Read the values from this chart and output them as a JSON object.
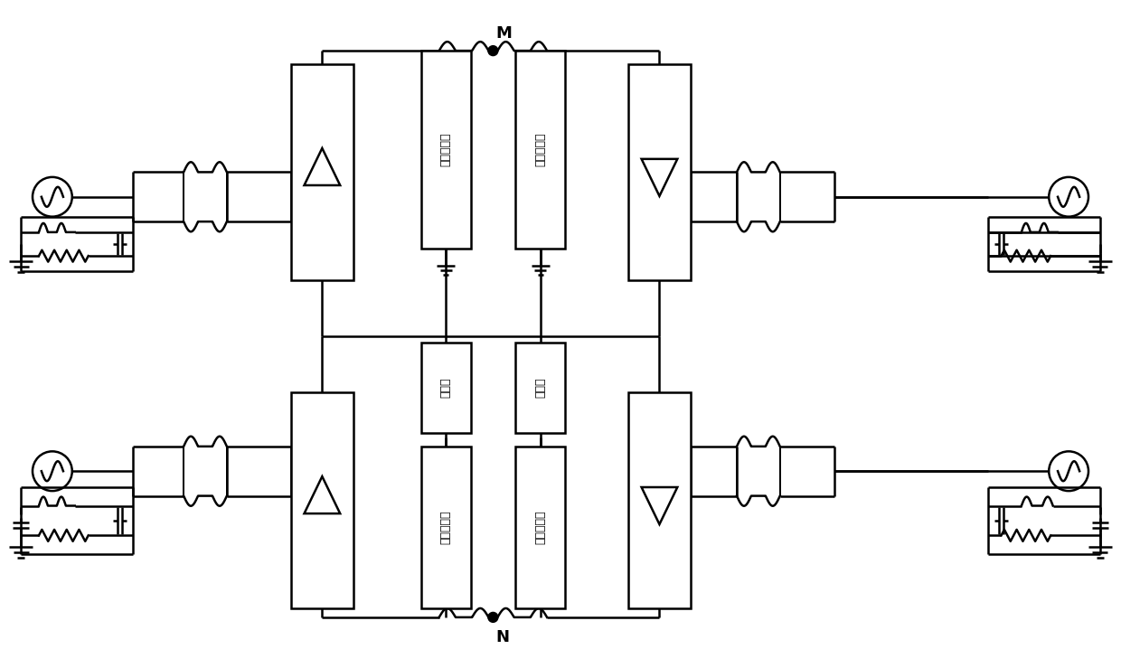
{
  "bg_color": "#ffffff",
  "line_color": "#000000",
  "line_width": 1.8,
  "fig_width": 12.4,
  "fig_height": 7.39,
  "label_M": "M",
  "label_N": "N",
  "label_dcf": "直流滤波器",
  "label_ge": "接地极",
  "fontsize_label": 11,
  "fontsize_MN": 13
}
